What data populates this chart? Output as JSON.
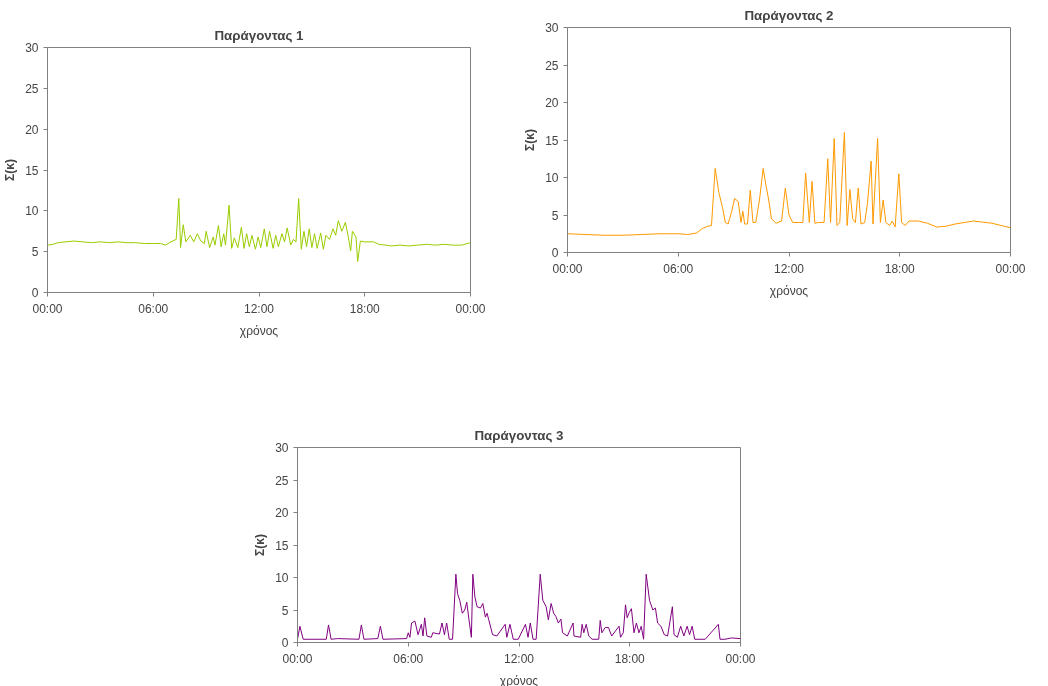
{
  "chart_data": [
    {
      "type": "line",
      "title": "Παράγοντας 1",
      "xlabel": "χρόνος",
      "ylabel": "Σ(κ)",
      "xlim": [
        0,
        24
      ],
      "ylim": [
        0,
        30
      ],
      "yticks": [
        0,
        5,
        10,
        15,
        20,
        25,
        30
      ],
      "xticks": [
        {
          "value": 0,
          "label": "00:00"
        },
        {
          "value": 6,
          "label": "06:00"
        },
        {
          "value": 12,
          "label": "12:00"
        },
        {
          "value": 18,
          "label": "18:00"
        },
        {
          "value": 24,
          "label": "00:00"
        }
      ],
      "grid": false,
      "marker": "none",
      "line_style": "solid",
      "series": [
        {
          "color": "#99cc00",
          "x": [
            0,
            0.3,
            0.6,
            1,
            1.5,
            2,
            2.5,
            3,
            3.5,
            4,
            4.5,
            5,
            5.5,
            6,
            6.4,
            6.7,
            7.0,
            7.3,
            7.45,
            7.55,
            7.7,
            7.85,
            8.1,
            8.3,
            8.5,
            8.7,
            8.9,
            9.0,
            9.2,
            9.4,
            9.5,
            9.7,
            9.85,
            10.0,
            10.1,
            10.3,
            10.45,
            10.6,
            10.8,
            11.0,
            11.15,
            11.3,
            11.45,
            11.6,
            11.8,
            11.95,
            12.1,
            12.3,
            12.45,
            12.6,
            12.8,
            12.95,
            13.1,
            13.3,
            13.45,
            13.6,
            13.8,
            13.95,
            14.1,
            14.25,
            14.4,
            14.55,
            14.7,
            14.85,
            15.0,
            15.15,
            15.3,
            15.5,
            15.65,
            15.8,
            16.0,
            16.2,
            16.35,
            16.5,
            16.7,
            16.9,
            17.05,
            17.2,
            17.3,
            17.5,
            17.6,
            17.75,
            18.0,
            18.5,
            18.8,
            19.2,
            19.5,
            20,
            20.5,
            21,
            21.5,
            22,
            22.5,
            23,
            23.5,
            24
          ],
          "values": [
            5.8,
            5.9,
            6.1,
            6.2,
            6.3,
            6.2,
            6.1,
            6.2,
            6.1,
            6.2,
            6.1,
            6.1,
            6.0,
            6.0,
            6.0,
            5.8,
            6.2,
            6.5,
            11.5,
            5.5,
            8.3,
            6.2,
            7.0,
            6.2,
            7.2,
            6.3,
            6.0,
            7.5,
            5.5,
            6.8,
            5.8,
            8.2,
            5.6,
            7.2,
            5.8,
            10.7,
            5.4,
            6.7,
            5.5,
            8.0,
            5.4,
            7.2,
            5.6,
            7.0,
            5.3,
            6.8,
            5.5,
            7.8,
            5.6,
            7.5,
            5.4,
            7.0,
            5.6,
            7.2,
            6.2,
            7.9,
            5.8,
            6.5,
            6.2,
            11.5,
            5.3,
            7.5,
            5.6,
            7.8,
            5.5,
            7.2,
            5.4,
            7.3,
            5.3,
            7.0,
            6.5,
            7.8,
            7.0,
            8.8,
            7.5,
            8.6,
            7.0,
            5.1,
            7.5,
            6.8,
            3.8,
            6.3,
            6.2,
            6.2,
            5.9,
            5.8,
            5.7,
            5.8,
            5.7,
            5.8,
            5.9,
            5.8,
            5.9,
            5.8,
            5.8,
            6.1
          ]
        }
      ]
    },
    {
      "type": "line",
      "title": "Παράγοντας 2",
      "xlabel": "χρόνος",
      "ylabel": "Σ(κ)",
      "xlim": [
        0,
        24
      ],
      "ylim": [
        0,
        30
      ],
      "yticks": [
        0,
        5,
        10,
        15,
        20,
        25,
        30
      ],
      "xticks": [
        {
          "value": 0,
          "label": "00:00"
        },
        {
          "value": 6,
          "label": "06:00"
        },
        {
          "value": 12,
          "label": "12:00"
        },
        {
          "value": 18,
          "label": "18:00"
        },
        {
          "value": 24,
          "label": "00:00"
        }
      ],
      "grid": false,
      "marker": "none",
      "line_style": "solid",
      "series": [
        {
          "color": "#ff9900",
          "x": [
            0,
            1,
            2,
            3,
            4,
            5,
            6,
            6.5,
            7,
            7.3,
            7.6,
            7.8,
            8.0,
            8.2,
            8.4,
            8.55,
            8.7,
            8.9,
            9.05,
            9.25,
            9.4,
            9.5,
            9.6,
            9.75,
            9.9,
            10.05,
            10.2,
            10.4,
            10.6,
            10.75,
            10.9,
            11.05,
            11.3,
            11.6,
            11.8,
            12.0,
            12.2,
            12.5,
            12.75,
            12.9,
            13.1,
            13.25,
            13.4,
            13.6,
            13.9,
            14.1,
            14.25,
            14.45,
            14.6,
            14.75,
            15.0,
            15.15,
            15.3,
            15.45,
            15.6,
            15.75,
            15.9,
            16.1,
            16.25,
            16.45,
            16.55,
            16.8,
            16.95,
            17.1,
            17.25,
            17.45,
            17.6,
            17.75,
            17.95,
            18.1,
            18.3,
            18.5,
            19,
            19.5,
            20,
            20.5,
            21,
            22,
            23,
            24
          ],
          "values": [
            2.5,
            2.4,
            2.3,
            2.3,
            2.4,
            2.5,
            2.5,
            2.4,
            2.6,
            3.2,
            3.5,
            3.6,
            11.2,
            8.0,
            6.0,
            4.0,
            3.8,
            5.5,
            7.2,
            6.8,
            4.0,
            5.5,
            3.8,
            3.8,
            8.3,
            4.0,
            4.0,
            7.0,
            11.2,
            9.0,
            7.0,
            4.5,
            3.9,
            4.2,
            8.6,
            5.0,
            4.0,
            4.0,
            4.0,
            10.6,
            4.0,
            9.5,
            3.9,
            4.0,
            4.0,
            12.5,
            4.0,
            15.2,
            3.6,
            4.0,
            16.0,
            3.6,
            8.4,
            4.5,
            4.0,
            8.6,
            3.8,
            4.0,
            6.5,
            12.2,
            3.8,
            15.2,
            4.0,
            7.0,
            4.0,
            3.6,
            4.2,
            3.4,
            10.5,
            4.0,
            3.6,
            4.2,
            4.2,
            3.9,
            3.4,
            3.5,
            3.8,
            4.2,
            3.9,
            3.3
          ]
        }
      ]
    },
    {
      "type": "line",
      "title": "Παράγοντας 3",
      "xlabel": "χρόνος",
      "ylabel": "Σ(κ)",
      "xlim": [
        0,
        24
      ],
      "ylim": [
        0,
        30
      ],
      "yticks": [
        0,
        5,
        10,
        15,
        20,
        25,
        30
      ],
      "xticks": [
        {
          "value": 0,
          "label": "00:00"
        },
        {
          "value": 6,
          "label": "06:00"
        },
        {
          "value": 12,
          "label": "12:00"
        },
        {
          "value": 18,
          "label": "18:00"
        },
        {
          "value": 24,
          "label": "00:00"
        }
      ],
      "grid": false,
      "marker": "none",
      "line_style": "solid",
      "series": [
        {
          "color": "#800080",
          "x": [
            0,
            0.13,
            0.31,
            1.56,
            1.68,
            1.82,
            2.18,
            3.33,
            3.46,
            3.6,
            4.35,
            4.49,
            4.63,
            5.91,
            6.0,
            6.09,
            6.18,
            6.36,
            6.53,
            6.71,
            6.8,
            6.89,
            7.01,
            7.25,
            7.33,
            7.69,
            7.83,
            7.96,
            8.08,
            8.22,
            8.4,
            8.58,
            8.67,
            8.79,
            8.93,
            9.06,
            9.17,
            9.29,
            9.42,
            9.5,
            9.61,
            9.73,
            9.91,
            10.04,
            10.18,
            10.27,
            10.36,
            10.57,
            10.8,
            11.25,
            11.34,
            11.51,
            11.69,
            11.96,
            12.35,
            12.49,
            12.61,
            12.76,
            12.93,
            13.15,
            13.29,
            13.47,
            13.59,
            13.74,
            13.88,
            14.0,
            14.13,
            14.27,
            14.36,
            14.62,
            14.93,
            14.98,
            15.34,
            15.42,
            15.51,
            15.64,
            15.78,
            15.96,
            16.32,
            16.4,
            16.49,
            16.67,
            16.85,
            17.02,
            17.42,
            17.5,
            17.65,
            17.77,
            17.86,
            17.97,
            18.09,
            18.23,
            18.36,
            18.5,
            18.62,
            18.75,
            18.89,
            19.07,
            19.25,
            19.39,
            19.51,
            19.69,
            19.87,
            20.05,
            20.31,
            20.4,
            20.58,
            20.76,
            20.93,
            21.11,
            21.24,
            21.38,
            21.52,
            22.09,
            22.8,
            22.89,
            23.16,
            23.51,
            24
          ],
          "values": [
            0.5,
            2.5,
            0.5,
            0.5,
            2.7,
            0.5,
            0.6,
            0.5,
            2.7,
            0.5,
            0.6,
            2.5,
            0.5,
            0.6,
            1.5,
            0.8,
            3.0,
            3.3,
            1.2,
            2.8,
            1.0,
            3.8,
            1.0,
            0.8,
            1.5,
            1.3,
            3.0,
            1.2,
            3.0,
            0.5,
            0.5,
            10.5,
            7.5,
            6.5,
            4.5,
            5.0,
            6.2,
            3.5,
            0.8,
            10.5,
            7.0,
            5.5,
            5.3,
            6.0,
            3.9,
            4.5,
            3.5,
            1.2,
            1.0,
            2.8,
            0.8,
            2.8,
            0.5,
            0.5,
            2.8,
            0.8,
            3.0,
            0.5,
            0.5,
            10.5,
            6.5,
            5.5,
            3.5,
            6.0,
            4.5,
            4.0,
            3.0,
            3.6,
            1.5,
            1.0,
            3.0,
            1.0,
            0.8,
            2.8,
            1.5,
            2.8,
            1.0,
            0.5,
            0.5,
            3.4,
            1.5,
            2.3,
            2.3,
            1.0,
            2.5,
            0.8,
            1.5,
            5.8,
            3.8,
            4.6,
            5.2,
            1.5,
            3.0,
            1.5,
            2.5,
            0.5,
            10.5,
            6.5,
            5.0,
            5.3,
            3.0,
            2.5,
            1.2,
            1.0,
            5.5,
            1.2,
            0.8,
            2.5,
            1.0,
            2.5,
            1.2,
            2.5,
            0.5,
            0.5,
            2.8,
            0.5,
            0.5,
            0.7,
            0.6
          ]
        }
      ]
    }
  ]
}
